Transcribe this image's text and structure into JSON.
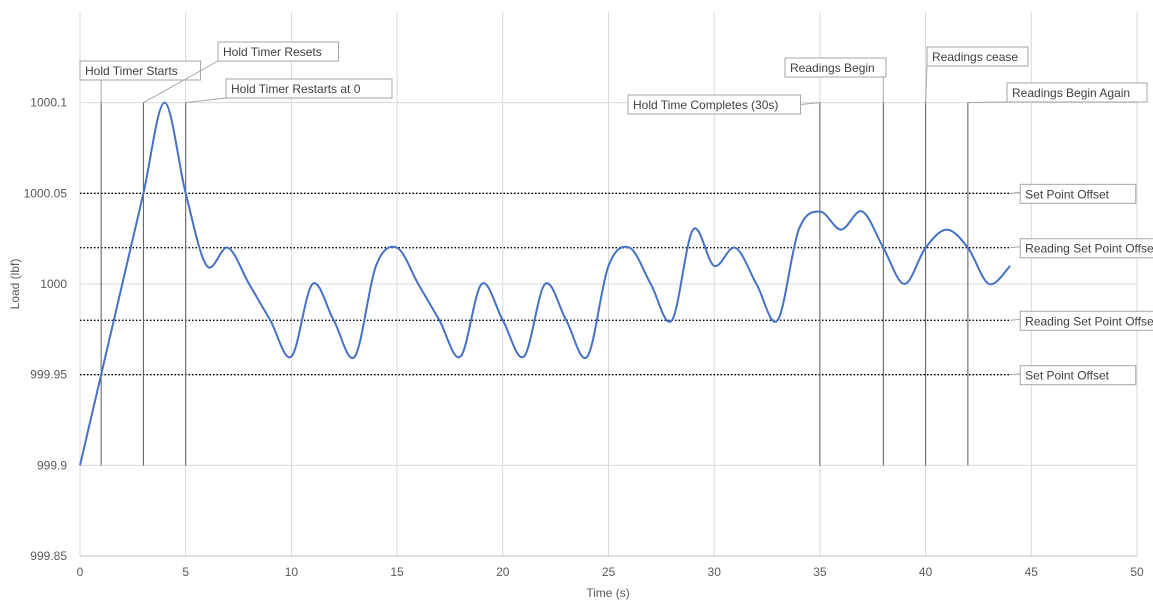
{
  "chart_data": {
    "type": "line",
    "title": "",
    "xlabel": "Time (s)",
    "ylabel": "Load (lbf)",
    "xlim": [
      0,
      50
    ],
    "ylim": [
      999.85,
      1000.15
    ],
    "x_ticks": [
      0,
      5,
      10,
      15,
      20,
      25,
      30,
      35,
      40,
      45,
      50
    ],
    "y_ticks": [
      999.85,
      999.9,
      999.95,
      1000,
      1000.05,
      1000.1
    ],
    "y_tick_labels": [
      "999.85",
      "999.9",
      "999.95",
      "1000",
      "1000.05",
      "1000.1"
    ],
    "grid": true,
    "colors": {
      "series": "#4472c4",
      "grid": "#d9d9d9",
      "reference": "#000000",
      "callout": "#404040"
    },
    "series": [
      {
        "x": [
          0,
          1,
          2,
          3,
          4,
          5,
          6,
          7,
          8,
          9,
          10,
          11,
          12,
          13,
          14,
          15,
          16,
          17,
          18,
          19,
          20,
          21,
          22,
          23,
          24,
          25,
          26,
          27,
          28,
          29,
          30,
          31,
          32,
          33,
          34,
          35,
          36,
          37,
          38,
          39,
          40,
          41,
          42,
          43,
          44
        ],
        "y": [
          999.9,
          999.95,
          1000,
          1000.05,
          1000.1,
          1000.05,
          1000.01,
          1000.02,
          1000,
          999.98,
          999.96,
          1000,
          999.98,
          999.96,
          1000.01,
          1000.02,
          1000,
          999.98,
          999.96,
          1000,
          999.98,
          999.96,
          1000,
          999.98,
          999.96,
          1000.01,
          1000.02,
          1000,
          999.98,
          1000.03,
          1000.01,
          1000.02,
          1000,
          999.98,
          1000.03,
          1000.04,
          1000.03,
          1000.04,
          1000.02,
          1000,
          1000.02,
          1000.03,
          1000.02,
          1000,
          1000.01
        ]
      }
    ],
    "reference_lines": [
      {
        "y": 1000.05,
        "x_end": 44,
        "label": "Set Point Offset"
      },
      {
        "y": 1000.02,
        "x_end": 44,
        "label": "Reading Set Point Offset"
      },
      {
        "y": 999.98,
        "x_end": 44,
        "label": "Reading Set Point Offset"
      },
      {
        "y": 999.95,
        "x_end": 44,
        "label": "Set Point Offset"
      }
    ],
    "event_markers": [
      {
        "x": 1,
        "label": "Hold Timer Starts"
      },
      {
        "x": 3,
        "label": "Hold Timer Resets"
      },
      {
        "x": 5,
        "label": "Hold Timer Restarts at 0"
      },
      {
        "x": 35,
        "label": "Hold Time Completes (30s)"
      },
      {
        "x": 38,
        "label": "Readings Begin"
      },
      {
        "x": 40,
        "label": "Readings cease"
      },
      {
        "x": 42,
        "label": "Readings Begin Again"
      }
    ]
  }
}
